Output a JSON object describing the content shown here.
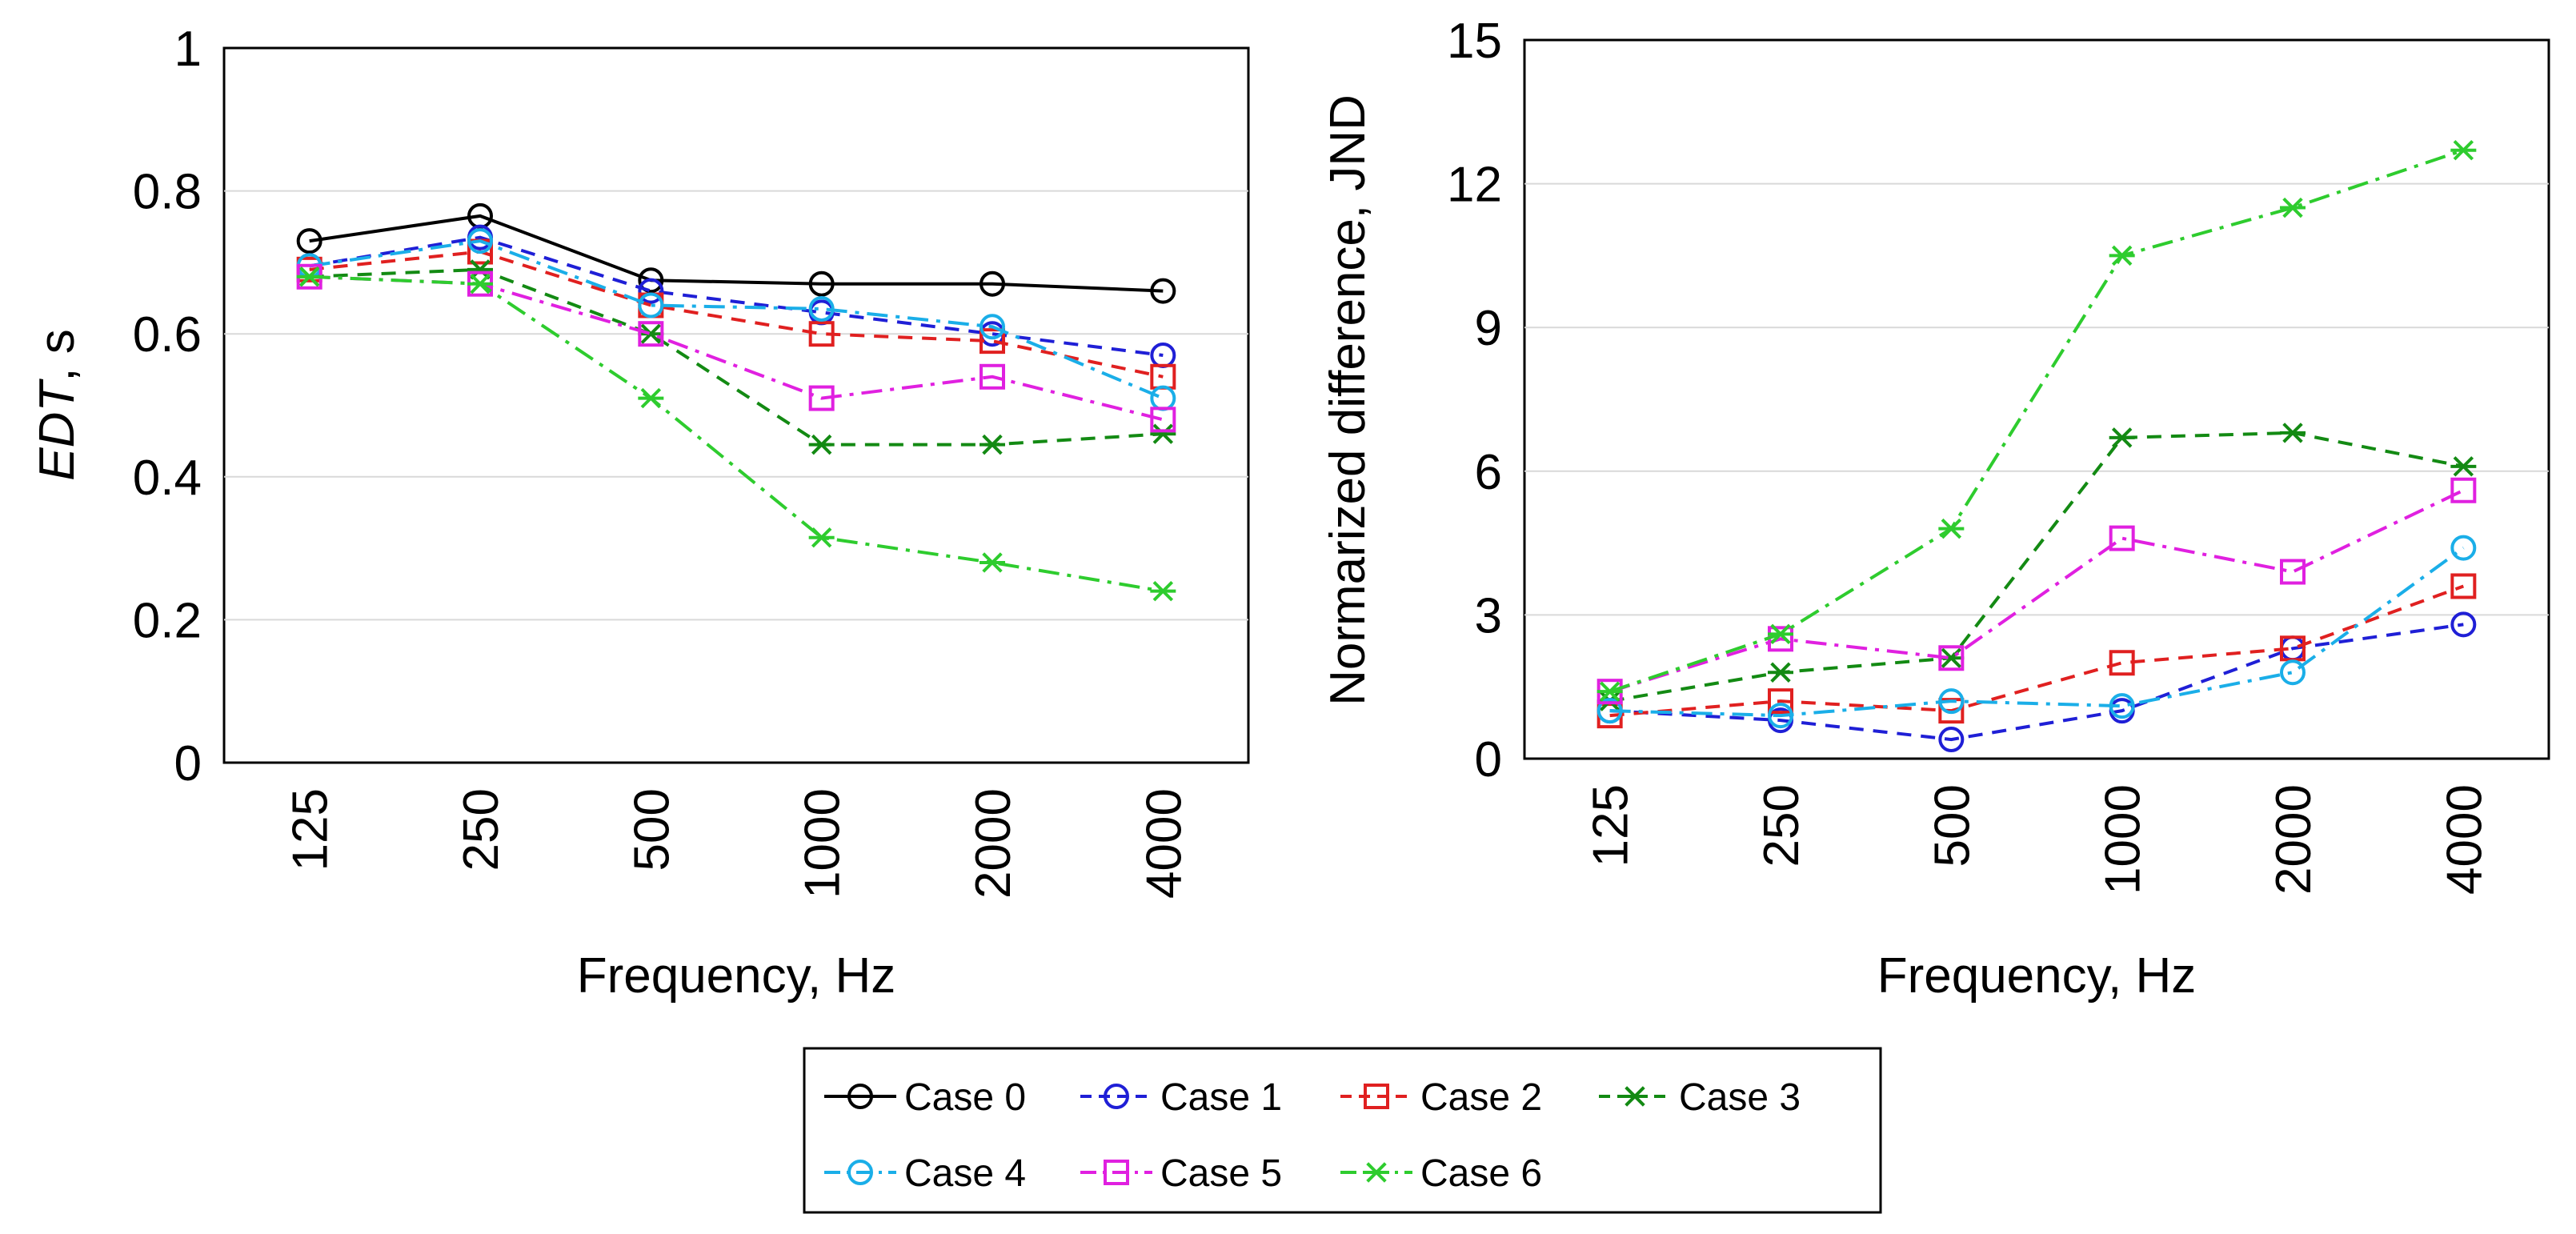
{
  "legend_title": "",
  "chart_data": [
    {
      "type": "line",
      "title": "",
      "xlabel": "Frequency, Hz",
      "ylabel_italic": "EDT",
      "ylabel_rest": ", s",
      "categories": [
        "125",
        "250",
        "500",
        "1000",
        "2000",
        "4000"
      ],
      "ylim": [
        0,
        1
      ],
      "yticks": [
        0,
        0.2,
        0.4,
        0.6,
        0.8,
        1
      ],
      "ytick_labels": [
        "0",
        "0.2",
        "0.4",
        "0.6",
        "0.8",
        "1"
      ],
      "grid": true,
      "series": [
        {
          "name": "Case 0",
          "values": [
            0.73,
            0.765,
            0.675,
            0.67,
            0.67,
            0.66
          ]
        },
        {
          "name": "Case 1",
          "values": [
            0.695,
            0.735,
            0.66,
            0.63,
            0.6,
            0.57
          ]
        },
        {
          "name": "Case 2",
          "values": [
            0.69,
            0.715,
            0.64,
            0.6,
            0.59,
            0.54
          ]
        },
        {
          "name": "Case 3",
          "values": [
            0.68,
            0.69,
            0.6,
            0.445,
            0.445,
            0.46
          ]
        },
        {
          "name": "Case 4",
          "values": [
            0.695,
            0.73,
            0.64,
            0.635,
            0.61,
            0.51
          ]
        },
        {
          "name": "Case 5",
          "values": [
            0.68,
            0.67,
            0.6,
            0.51,
            0.54,
            0.48
          ]
        },
        {
          "name": "Case 6",
          "values": [
            0.68,
            0.67,
            0.51,
            0.315,
            0.28,
            0.24
          ]
        }
      ]
    },
    {
      "type": "line",
      "title": "",
      "xlabel": "Frequency, Hz",
      "ylabel": "Normarized difference, JND",
      "categories": [
        "125",
        "250",
        "500",
        "1000",
        "2000",
        "4000"
      ],
      "ylim": [
        0,
        15
      ],
      "yticks": [
        0,
        3,
        6,
        9,
        12,
        15
      ],
      "ytick_labels": [
        "0",
        "3",
        "6",
        "9",
        "12",
        "15"
      ],
      "grid": true,
      "series": [
        {
          "name": "Case 1",
          "values": [
            1.0,
            0.8,
            0.4,
            1.0,
            2.3,
            2.8
          ]
        },
        {
          "name": "Case 2",
          "values": [
            0.9,
            1.2,
            1.0,
            2.0,
            2.3,
            3.6
          ]
        },
        {
          "name": "Case 3",
          "values": [
            1.2,
            1.8,
            2.1,
            6.7,
            6.8,
            6.1
          ]
        },
        {
          "name": "Case 4",
          "values": [
            1.0,
            0.9,
            1.2,
            1.1,
            1.8,
            4.4
          ]
        },
        {
          "name": "Case 5",
          "values": [
            1.4,
            2.5,
            2.1,
            4.6,
            3.9,
            5.6
          ]
        },
        {
          "name": "Case 6",
          "values": [
            1.4,
            2.6,
            4.8,
            10.5,
            11.5,
            12.7
          ]
        }
      ]
    }
  ],
  "legend": [
    {
      "name": "Case 0",
      "color": "#000000",
      "dash": "solid",
      "marker": "circle"
    },
    {
      "name": "Case 1",
      "color": "#1f1fd6",
      "dash": "dash",
      "marker": "circle"
    },
    {
      "name": "Case 2",
      "color": "#e02020",
      "dash": "dash",
      "marker": "square"
    },
    {
      "name": "Case 3",
      "color": "#138a13",
      "dash": "dash",
      "marker": "asterisk"
    },
    {
      "name": "Case 4",
      "color": "#1aaee8",
      "dash": "dashdot",
      "marker": "circle"
    },
    {
      "name": "Case 5",
      "color": "#e020e0",
      "dash": "dashdot",
      "marker": "square"
    },
    {
      "name": "Case 6",
      "color": "#2ecc2e",
      "dash": "dashdot",
      "marker": "asterisk"
    }
  ]
}
